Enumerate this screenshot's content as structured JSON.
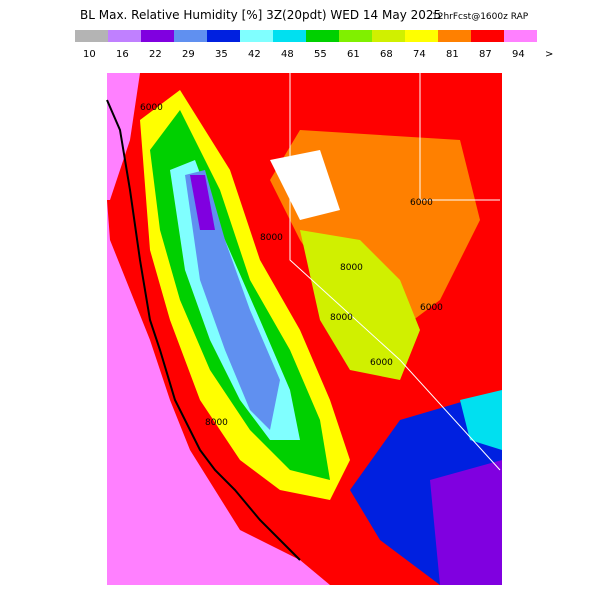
{
  "header": {
    "title": "BL Max. Relative Humidity [%] 3Z(20pdt) WED 14 May 2025",
    "subtitle": "12hrFcst@1600z RAP"
  },
  "legend": {
    "colors": [
      "#b4b4b4",
      "#c080ff",
      "#8000e0",
      "#6090f0",
      "#0020e0",
      "#80ffff",
      "#00e0f0",
      "#00d000",
      "#80f000",
      "#d0f000",
      "#ffff00",
      "#ff8000",
      "#ff0000",
      "#ff80ff"
    ],
    "labels": [
      "10",
      "16",
      "22",
      "29",
      "35",
      "42",
      "48",
      "55",
      "61",
      "68",
      "74",
      "81",
      "87",
      "94",
      ">"
    ]
  },
  "map": {
    "contour_labels": [
      "6000",
      "8000",
      "6000",
      "8000",
      "6000",
      "8000",
      "6000",
      "8000"
    ]
  }
}
